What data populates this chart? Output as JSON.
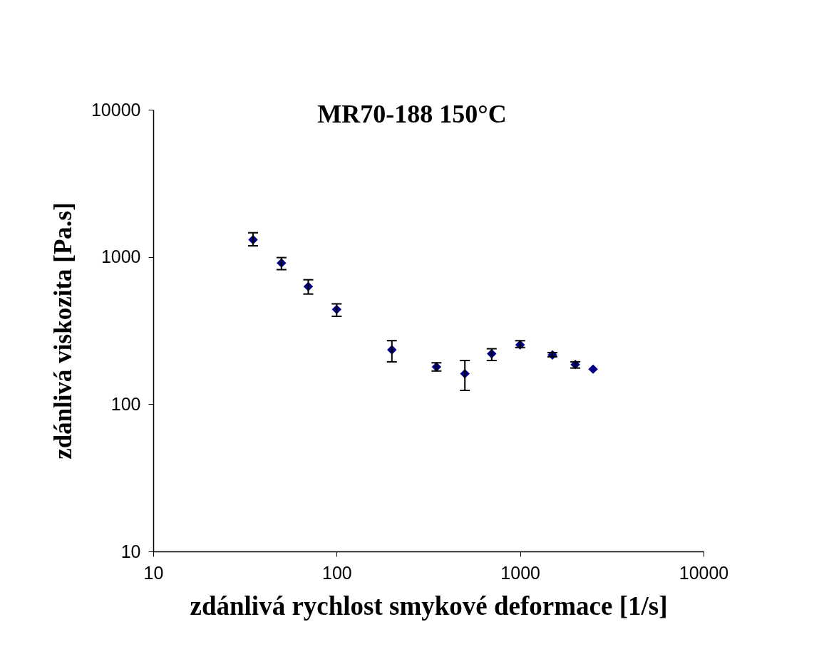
{
  "chart_data": {
    "type": "scatter",
    "title": "MR70-188 150°C",
    "xlabel": "zdánlivá rychlost smykové deformace [1/s]",
    "ylabel": "zdánlivá viskozita [Pa.s]",
    "x": [
      35,
      50,
      70,
      100,
      200,
      350,
      500,
      700,
      1000,
      1500,
      2000,
      2500
    ],
    "values": [
      1310,
      910,
      630,
      440,
      234,
      179,
      161,
      220,
      253,
      216,
      186,
      173
    ],
    "errors": [
      [
        1190,
        1460
      ],
      [
        820,
        990
      ],
      [
        560,
        700
      ],
      [
        395,
        480
      ],
      [
        194,
        270
      ],
      [
        168,
        191
      ],
      [
        124,
        198
      ],
      [
        198,
        238
      ],
      [
        243,
        270
      ],
      [
        210,
        224
      ],
      [
        176,
        194
      ],
      null
    ],
    "color": "#000080",
    "marker": "diamond",
    "log": "xy",
    "grid": false,
    "xlim": [
      10,
      10000
    ],
    "ylim": [
      10,
      10000
    ],
    "xticks": [
      10,
      100,
      1000,
      10000
    ],
    "yticks": [
      10,
      100,
      1000,
      10000
    ]
  }
}
